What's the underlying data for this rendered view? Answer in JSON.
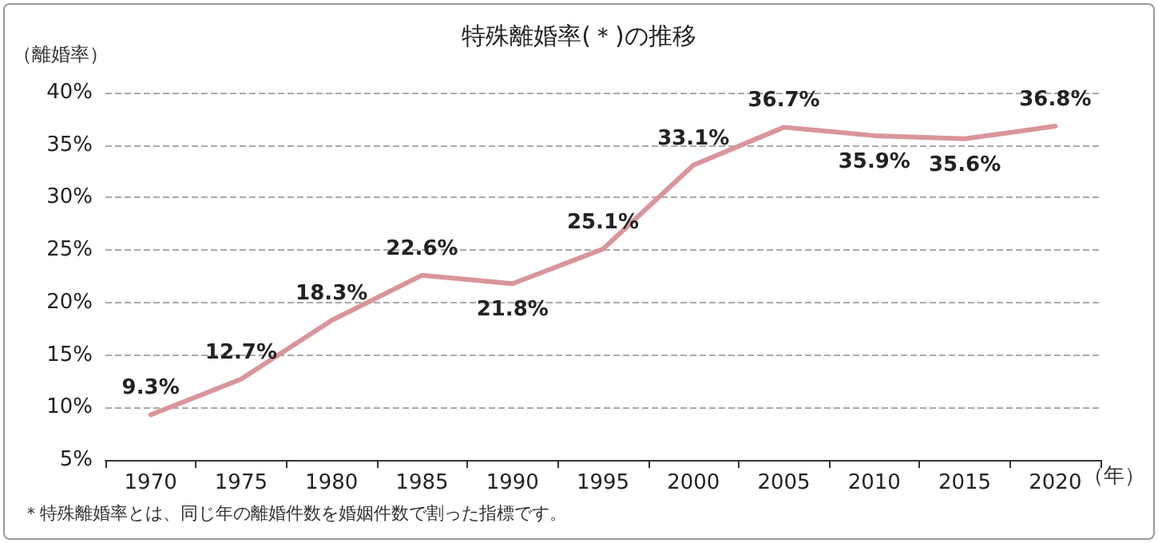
{
  "chart_data": {
    "type": "line",
    "title": "特殊離婚率(＊)の推移",
    "ylabel": "（離婚率）",
    "xlabel": "（年）",
    "annotations": [
      "＊特殊離婚率とは、同じ年の離婚件数を婚姻件数で割った指標です。"
    ],
    "categories": [
      "1970",
      "1975",
      "1980",
      "1985",
      "1990",
      "1995",
      "2000",
      "2005",
      "2010",
      "2015",
      "2020"
    ],
    "series": [
      {
        "color": "#d9959a",
        "values": [
          9.3,
          12.7,
          18.3,
          22.6,
          21.8,
          25.1,
          33.1,
          36.7,
          35.9,
          35.6,
          36.8
        ],
        "value_labels": [
          "9.3%",
          "12.7%",
          "18.3%",
          "22.6%",
          "21.8%",
          "25.1%",
          "33.1%",
          "36.7%",
          "35.9%",
          "35.6%",
          "36.8%"
        ]
      }
    ],
    "ylim": [
      5,
      40
    ],
    "yticks": [
      {
        "value": 5,
        "label": "5%"
      },
      {
        "value": 10,
        "label": "10%"
      },
      {
        "value": 15,
        "label": "15%"
      },
      {
        "value": 20,
        "label": "20%"
      },
      {
        "value": 25,
        "label": "25%"
      },
      {
        "value": 30,
        "label": "30%"
      },
      {
        "value": 35,
        "label": "35%"
      },
      {
        "value": 40,
        "label": "40%"
      }
    ],
    "grid": "y",
    "marker": "none",
    "line_style": "solid"
  }
}
